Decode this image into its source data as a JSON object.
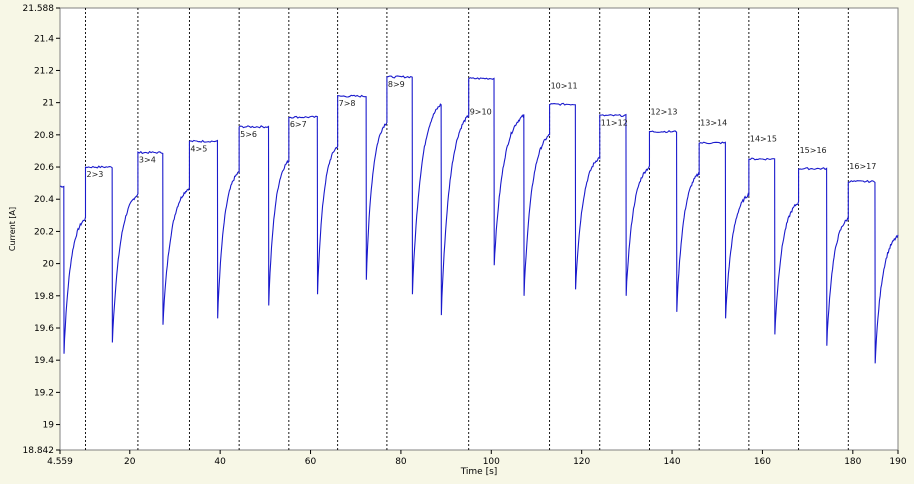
{
  "chart_data": {
    "type": "line",
    "title": "",
    "xlabel": "Time [s]",
    "ylabel": "Current [A]",
    "xlim": [
      4.559,
      190
    ],
    "ylim": [
      18.842,
      21.588
    ],
    "xticks": [
      4.559,
      20,
      40,
      60,
      80,
      100,
      120,
      140,
      160,
      180,
      190
    ],
    "xtick_labels": [
      "4.559",
      "20",
      "40",
      "60",
      "80",
      "100",
      "120",
      "140",
      "160",
      "180",
      "190"
    ],
    "yticks": [
      18.842,
      19,
      19.2,
      19.4,
      19.6,
      19.8,
      20,
      20.2,
      20.4,
      20.6,
      20.8,
      21,
      21.2,
      21.4,
      21.588
    ],
    "ytick_labels": [
      "18.842",
      "19",
      "19.2",
      "19.4",
      "19.6",
      "19.8",
      "20",
      "20.2",
      "20.4",
      "20.6",
      "20.8",
      "21",
      "21.2",
      "21.4",
      "21.588"
    ],
    "grid": false,
    "legend": "none",
    "line_color": "#1a1acc",
    "marker_line_color": "#000000",
    "markers": [
      {
        "x": 10.2,
        "label": "2>3"
      },
      {
        "x": 21.8,
        "label": "3>4"
      },
      {
        "x": 33.2,
        "label": "4>5"
      },
      {
        "x": 44.2,
        "label": "5>6"
      },
      {
        "x": 55.2,
        "label": "6>7"
      },
      {
        "x": 66.0,
        "label": "7>8"
      },
      {
        "x": 76.9,
        "label": "8>9"
      },
      {
        "x": 95.0,
        "label": "9>10"
      },
      {
        "x": 112.9,
        "label": "10>11"
      },
      {
        "x": 124.0,
        "label": "11>12"
      },
      {
        "x": 135.0,
        "label": "12>13"
      },
      {
        "x": 146.0,
        "label": "13>14"
      },
      {
        "x": 157.0,
        "label": "14>15"
      },
      {
        "x": 168.0,
        "label": "15>16"
      },
      {
        "x": 179.0,
        "label": "16>17"
      }
    ],
    "segments": [
      {
        "x_start": 4.559,
        "x_step": 5.4,
        "plateau": 20.48,
        "plateau_end": 5.4,
        "recovery_min": 19.44,
        "recovery_peak": 20.28,
        "x_end": 10.2
      },
      {
        "x_start": 10.2,
        "x_step": 16.1,
        "plateau": 20.6,
        "plateau_end": 16.1,
        "recovery_min": 19.51,
        "recovery_peak": 20.43,
        "x_end": 21.8
      },
      {
        "x_start": 21.8,
        "x_step": 27.3,
        "plateau": 20.69,
        "plateau_end": 27.3,
        "recovery_min": 19.62,
        "recovery_peak": 20.47,
        "x_end": 33.2
      },
      {
        "x_start": 33.2,
        "x_step": 39.4,
        "plateau": 20.76,
        "plateau_end": 39.4,
        "recovery_min": 19.66,
        "recovery_peak": 20.57,
        "x_end": 44.2
      },
      {
        "x_start": 44.2,
        "x_step": 50.7,
        "plateau": 20.85,
        "plateau_end": 50.7,
        "recovery_min": 19.74,
        "recovery_peak": 20.64,
        "x_end": 55.2
      },
      {
        "x_start": 55.2,
        "x_step": 61.5,
        "plateau": 20.91,
        "plateau_end": 61.5,
        "recovery_min": 19.81,
        "recovery_peak": 20.73,
        "x_end": 66.0
      },
      {
        "x_start": 66.0,
        "x_step": 72.3,
        "plateau": 21.04,
        "plateau_end": 72.3,
        "recovery_min": 19.9,
        "recovery_peak": 20.88,
        "x_end": 76.9
      },
      {
        "x_start": 76.9,
        "x_step": 82.5,
        "plateau": 21.16,
        "plateau_end": 82.5,
        "recovery_min": 19.81,
        "recovery_peak": 20.99,
        "x_end": 88.9
      },
      {
        "x_start": 88.9,
        "x_step": 88.9,
        "plateau": 20.99,
        "plateau_end": 88.9,
        "recovery_min": 19.68,
        "recovery_peak": 20.92,
        "x_end": 95.0
      },
      {
        "x_start": 95.0,
        "x_step": 100.6,
        "plateau": 21.15,
        "plateau_end": 100.6,
        "recovery_min": 19.99,
        "recovery_peak": 20.92,
        "x_end": 107.2
      },
      {
        "x_start": 107.2,
        "x_step": 107.2,
        "plateau": 20.92,
        "plateau_end": 107.2,
        "recovery_min": 19.8,
        "recovery_peak": 20.8,
        "x_end": 112.9
      },
      {
        "x_start": 112.9,
        "x_step": 118.6,
        "plateau": 20.99,
        "plateau_end": 118.6,
        "recovery_min": 19.84,
        "recovery_peak": 20.66,
        "x_end": 124.0
      },
      {
        "x_start": 124.0,
        "x_step": 129.8,
        "plateau": 20.92,
        "plateau_end": 129.8,
        "recovery_min": 19.8,
        "recovery_peak": 20.6,
        "x_end": 135.0
      },
      {
        "x_start": 135.0,
        "x_step": 141.0,
        "plateau": 20.82,
        "plateau_end": 141.0,
        "recovery_min": 19.7,
        "recovery_peak": 20.56,
        "x_end": 146.0
      },
      {
        "x_start": 146.0,
        "x_step": 151.8,
        "plateau": 20.75,
        "plateau_end": 151.8,
        "recovery_min": 19.66,
        "recovery_peak": 20.43,
        "x_end": 157.0
      },
      {
        "x_start": 157.0,
        "x_step": 162.7,
        "plateau": 20.65,
        "plateau_end": 162.7,
        "recovery_min": 19.56,
        "recovery_peak": 20.38,
        "x_end": 168.0
      },
      {
        "x_start": 168.0,
        "x_step": 174.2,
        "plateau": 20.59,
        "plateau_end": 174.2,
        "recovery_min": 19.49,
        "recovery_peak": 20.28,
        "x_end": 179.0
      },
      {
        "x_start": 179.0,
        "x_step": 184.9,
        "plateau": 20.51,
        "plateau_end": 184.9,
        "recovery_min": 19.38,
        "recovery_peak": 20.17,
        "x_end": 190.0
      }
    ]
  }
}
